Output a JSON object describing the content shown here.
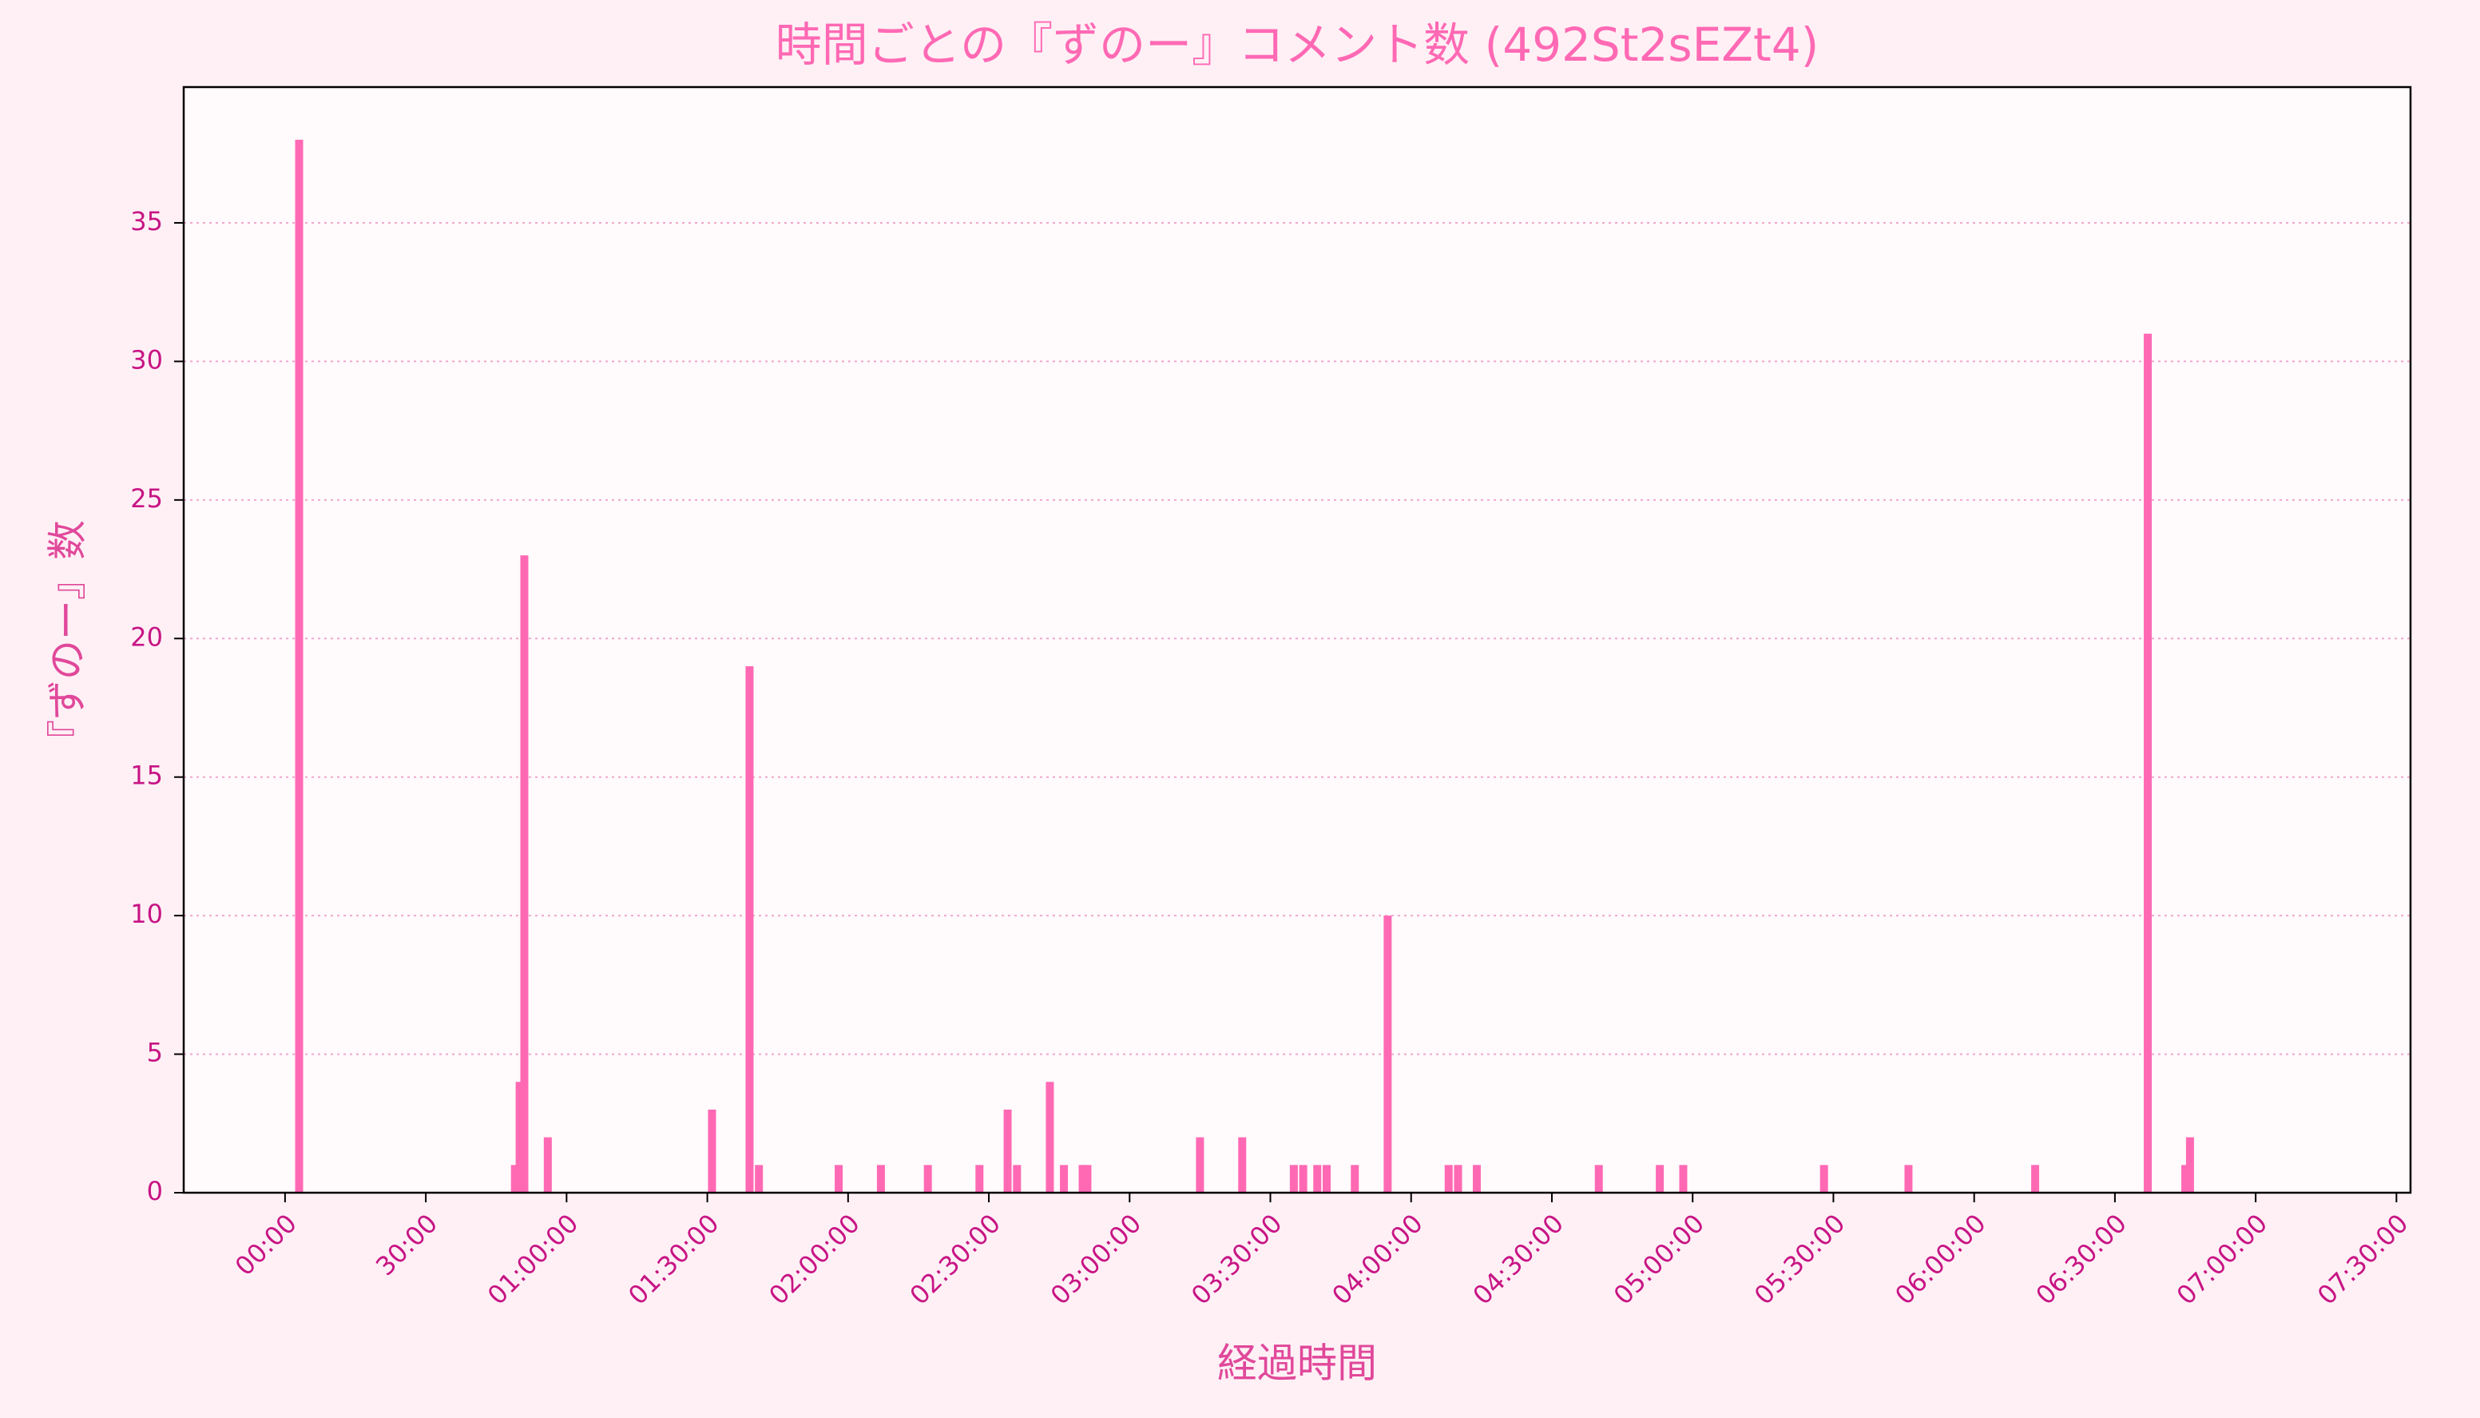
{
  "chart_data": {
    "type": "bar",
    "title": "時間ごとの『ずのー』コメント数 (492St2sEZt4)",
    "x_label": "経過時間",
    "y_label": "『ずのー』数",
    "color": "#ff69b4",
    "grid": true,
    "x": [
      3,
      49,
      50,
      51,
      56,
      91,
      99,
      101,
      118,
      127,
      137,
      148,
      154,
      156,
      163,
      166,
      170,
      171,
      195,
      204,
      215,
      217,
      220,
      222,
      228,
      235,
      248,
      250,
      254,
      280,
      293,
      298,
      328,
      346,
      373,
      397,
      405,
      406
    ],
    "values": [
      38,
      1,
      4,
      23,
      2,
      3,
      19,
      1,
      1,
      1,
      1,
      1,
      3,
      1,
      4,
      1,
      1,
      1,
      2,
      2,
      1,
      1,
      1,
      1,
      1,
      10,
      1,
      1,
      1,
      1,
      1,
      1,
      1,
      1,
      1,
      31,
      1,
      2
    ],
    "xlim": [
      -21.6,
      453
    ],
    "ylim": [
      0,
      39.9
    ],
    "yticks": [
      0,
      5,
      10,
      15,
      20,
      25,
      30,
      35
    ],
    "xticks": [
      {
        "value": 0,
        "label": "00:00"
      },
      {
        "value": 30,
        "label": "30:00"
      },
      {
        "value": 60,
        "label": "01:00:00"
      },
      {
        "value": 90,
        "label": "01:30:00"
      },
      {
        "value": 120,
        "label": "02:00:00"
      },
      {
        "value": 150,
        "label": "02:30:00"
      },
      {
        "value": 180,
        "label": "03:00:00"
      },
      {
        "value": 210,
        "label": "03:30:00"
      },
      {
        "value": 240,
        "label": "04:00:00"
      },
      {
        "value": 270,
        "label": "04:30:00"
      },
      {
        "value": 300,
        "label": "05:00:00"
      },
      {
        "value": 330,
        "label": "05:30:00"
      },
      {
        "value": 360,
        "label": "06:00:00"
      },
      {
        "value": 390,
        "label": "06:30:00"
      },
      {
        "value": 420,
        "label": "07:00:00"
      },
      {
        "value": 450,
        "label": "07:30:00"
      }
    ]
  }
}
